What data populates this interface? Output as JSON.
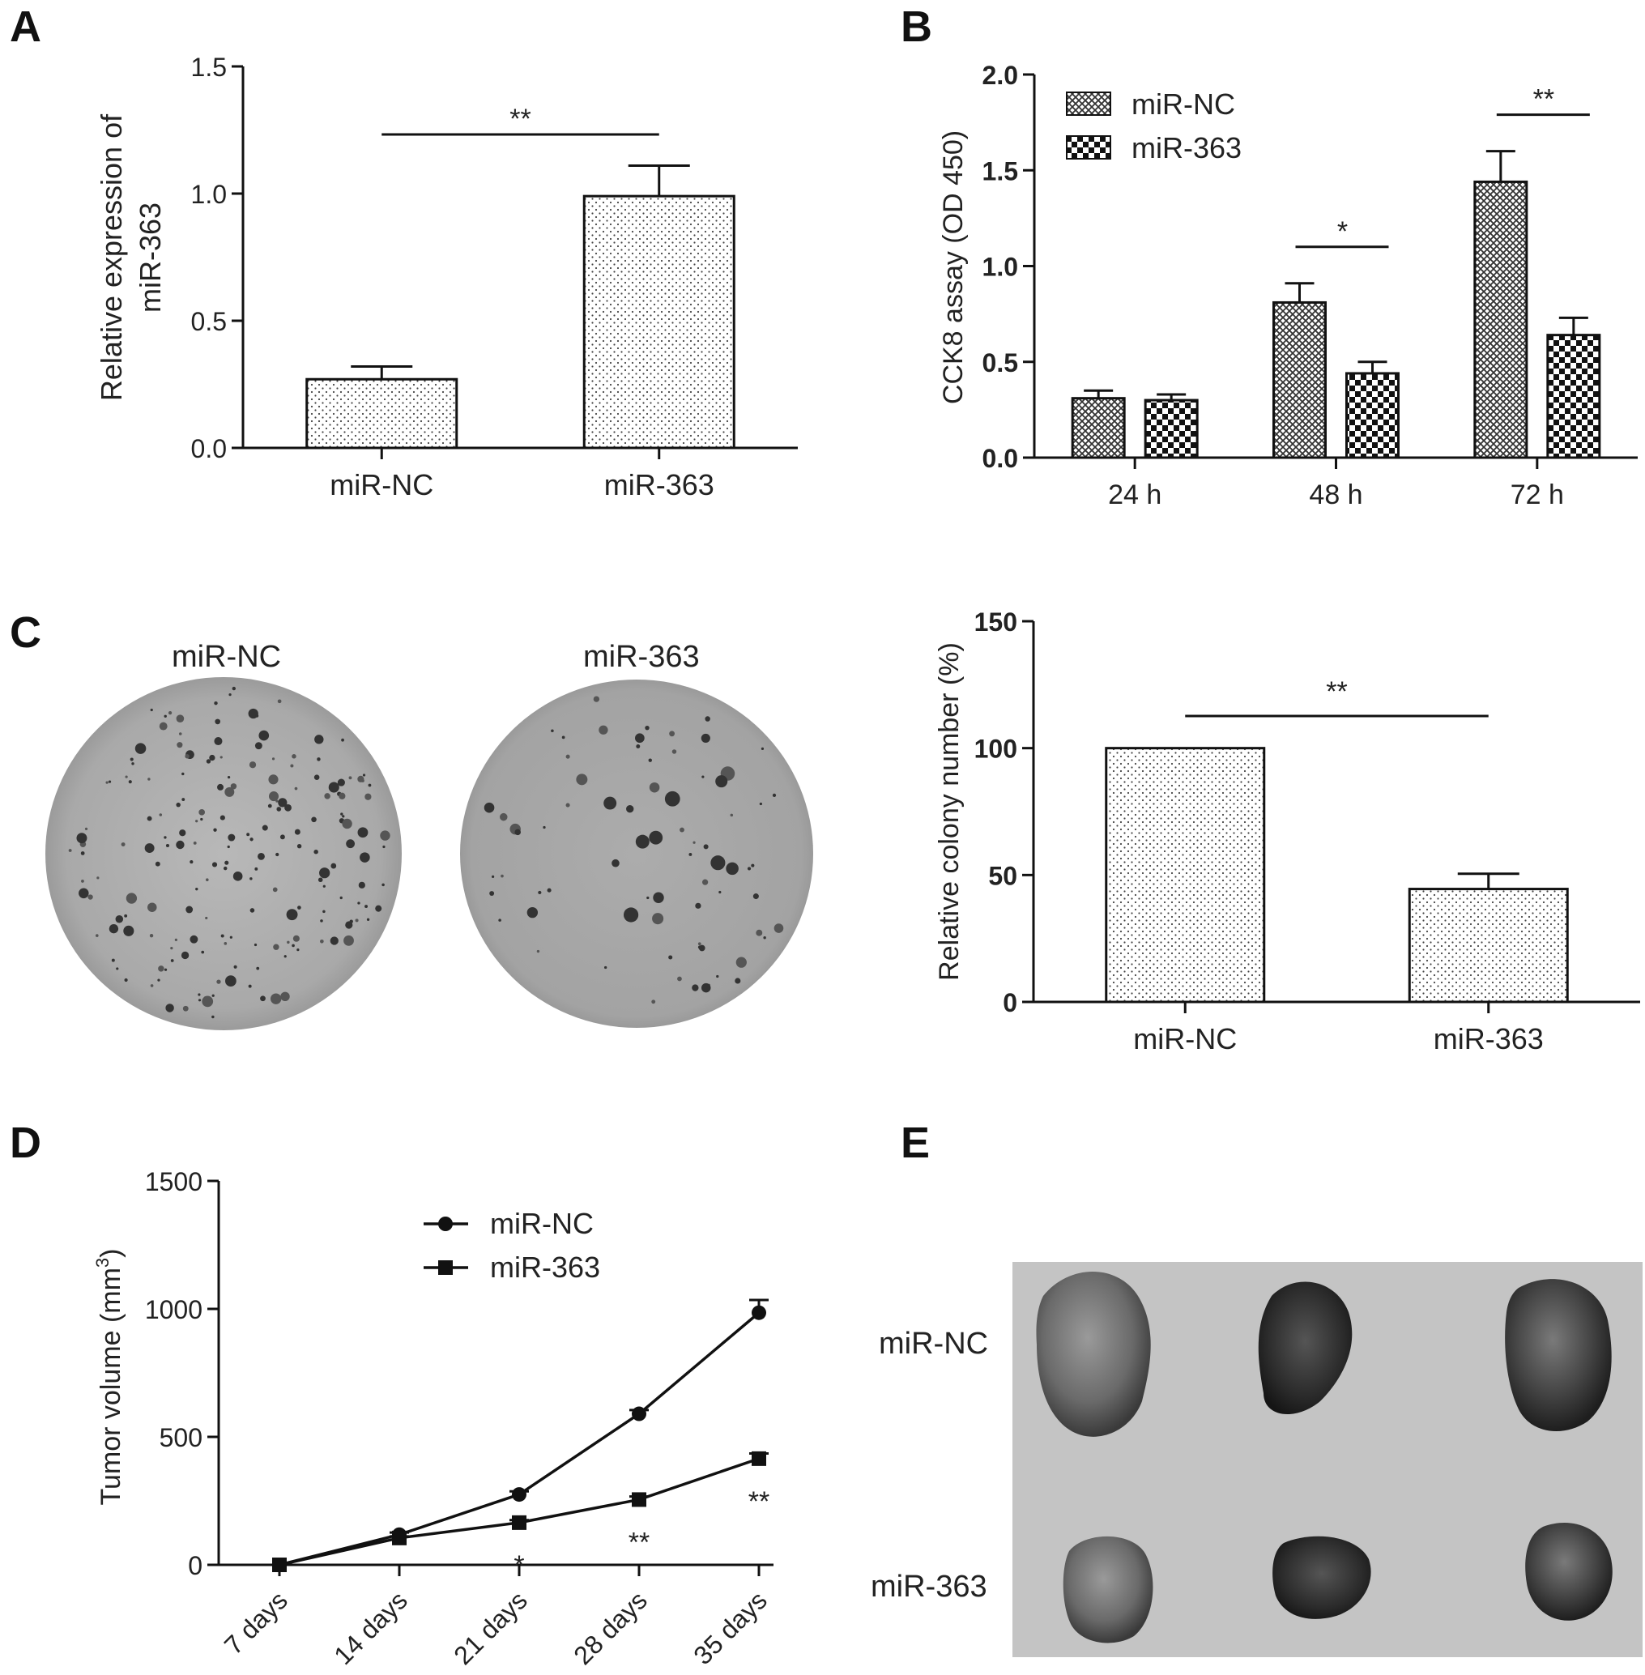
{
  "panels": {
    "A": {
      "letter": "A",
      "chart_data": {
        "type": "bar",
        "categories": [
          "miR-NC",
          "miR-363"
        ],
        "values": [
          0.27,
          0.99
        ],
        "errors": [
          0.05,
          0.12
        ],
        "ylabel": [
          "Relative expression of",
          "miR-363"
        ],
        "ylim": [
          0,
          1.5
        ],
        "yticks": [
          0.0,
          0.5,
          1.0,
          1.5
        ],
        "ytick_labels": [
          "0.0",
          "0.5",
          "1.0",
          "1.5"
        ],
        "fill_pattern": "dots",
        "significance": [
          {
            "from": 0,
            "to": 1,
            "label": "**"
          }
        ]
      }
    },
    "B": {
      "letter": "B",
      "chart_data": {
        "type": "bar",
        "categories": [
          "24 h",
          "48 h",
          "72 h"
        ],
        "series": [
          {
            "name": "miR-NC",
            "values": [
              0.31,
              0.81,
              1.44
            ],
            "errors": [
              0.04,
              0.1,
              0.16
            ],
            "pattern": "crosshatch"
          },
          {
            "name": "miR-363",
            "values": [
              0.3,
              0.44,
              0.64
            ],
            "errors": [
              0.03,
              0.06,
              0.09
            ],
            "pattern": "checker"
          }
        ],
        "ylabel": "CCK8 assay (OD 450)",
        "ylim": [
          0,
          2.0
        ],
        "yticks": [
          0.0,
          0.5,
          1.0,
          1.5,
          2.0
        ],
        "ytick_labels": [
          "0.0",
          "0.5",
          "1.0",
          "1.5",
          "2.0"
        ],
        "legend_position": "top-left",
        "significance": [
          {
            "category": 1,
            "label": "*"
          },
          {
            "category": 2,
            "label": "**"
          }
        ]
      }
    },
    "C": {
      "letter": "C",
      "photo_labels": [
        "miR-NC",
        "miR-363"
      ],
      "chart_data": {
        "type": "bar",
        "categories": [
          "miR-NC",
          "miR-363"
        ],
        "values": [
          100,
          44.5
        ],
        "errors": [
          0,
          6
        ],
        "ylabel": "Relative colony number (%)",
        "ylim": [
          0,
          150
        ],
        "yticks": [
          0,
          50,
          100,
          150
        ],
        "ytick_labels": [
          "0",
          "50",
          "100",
          "150"
        ],
        "fill_pattern": "dots",
        "significance": [
          {
            "from": 0,
            "to": 1,
            "label": "**"
          }
        ]
      }
    },
    "D": {
      "letter": "D",
      "chart_data": {
        "type": "line",
        "x": [
          "7 days",
          "14 days",
          "21 days",
          "28 days",
          "35 days"
        ],
        "series": [
          {
            "name": "miR-NC",
            "marker": "circle",
            "values": [
              0,
              118,
              275,
              590,
              985
            ],
            "errors": [
              0,
              8,
              12,
              15,
              50
            ]
          },
          {
            "name": "miR-363",
            "marker": "square",
            "values": [
              0,
              105,
              165,
              255,
              415
            ],
            "errors": [
              0,
              6,
              10,
              12,
              20
            ]
          }
        ],
        "ylabel": "Tumor volume (mm",
        "ylabel_sup": "3",
        "ylabel_end": ")",
        "ylim": [
          0,
          1500
        ],
        "yticks": [
          0,
          500,
          1000,
          1500
        ],
        "ytick_labels": [
          "0",
          "500",
          "1000",
          "1500"
        ],
        "legend_position": "top-center",
        "annotations": [
          {
            "index": 2,
            "label": "*"
          },
          {
            "index": 3,
            "label": "**"
          },
          {
            "index": 4,
            "label": "**"
          }
        ]
      }
    },
    "E": {
      "letter": "E",
      "row_labels": [
        "miR-NC",
        "miR-363"
      ]
    }
  }
}
